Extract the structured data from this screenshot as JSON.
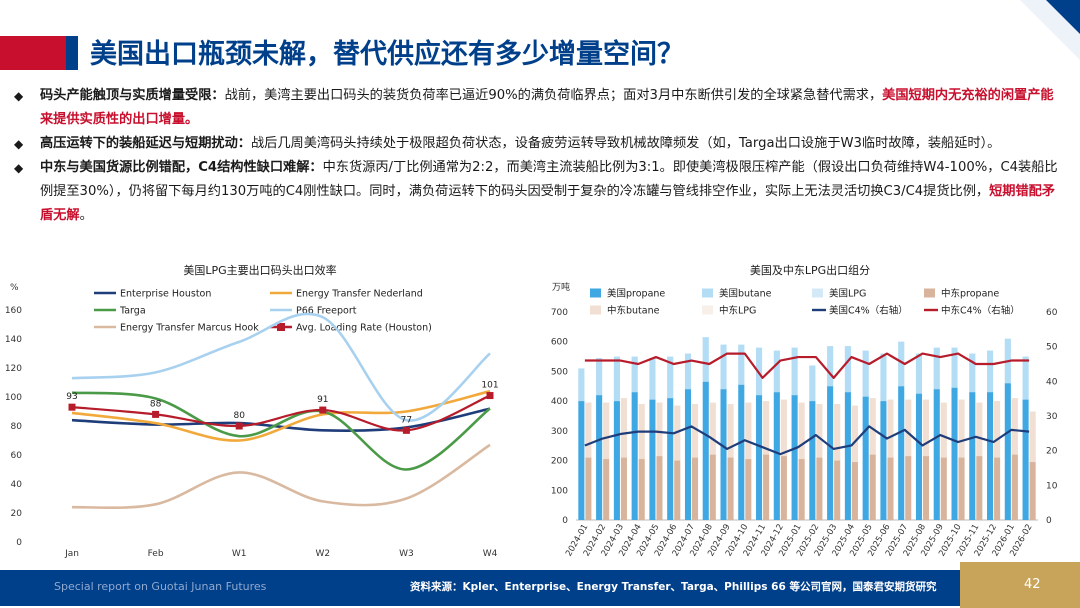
{
  "header": {
    "title": "美国出口瓶颈未解，替代供应还有多少增量空间？"
  },
  "bullets": [
    {
      "bold": "码头产能触顶与实质增量受限：",
      "text": "战前，美湾主要出口码头的装货负荷率已逼近90%的满负荷临界点；面对3月中东断供引发的全球紧急替代需求，",
      "red": "美国短期内无充裕的闲置产能来提供实质性的出口增量。",
      "tail": ""
    },
    {
      "bold": "高压运转下的装船延迟与短期扰动：",
      "text": "战后几周美湾码头持续处于极限超负荷状态，设备疲劳运转导致机械故障频发（如，Targa出口设施于W3临时故障，装船延时）。",
      "red": "",
      "tail": ""
    },
    {
      "bold": "中东与美国货源比例错配，C4结构性缺口难解：",
      "text": "中东货源丙/丁比例通常为2:2，而美湾主流装船比例为3:1。即使美湾极限压榨产能（假设出口负荷维持W4-100%，C4装船比例提至30%），仍将留下每月约130万吨的C4刚性缺口。同时，满负荷运转下的码头因受制于复杂的冷冻罐与管线排空作业，实际上无法灵活切换C3/C4提货比例，",
      "red": "短期错配矛盾无解",
      "tail": "。"
    }
  ],
  "footer": {
    "en": "Special report on Guotai Junan Futures",
    "source": "资料来源：Kpler、Enterprise、Energy Transfer、Targa、Phillips 66 等公司官网，国泰君安期货研究",
    "page": "42"
  },
  "chart_data": [
    {
      "type": "line",
      "title": "美国LPG主要出口码头出口效率",
      "ylabel": "%",
      "ylim": [
        0,
        160
      ],
      "yticks": [
        0,
        20,
        40,
        60,
        80,
        100,
        120,
        140,
        160
      ],
      "categories": [
        "Jan",
        "Feb",
        "W1",
        "W2",
        "W3",
        "W4"
      ],
      "series": [
        {
          "name": "Enterprise Houston",
          "color": "#1f3d7a",
          "values": [
            84,
            81,
            82,
            77,
            79,
            92
          ]
        },
        {
          "name": "Energy Transfer Nederland",
          "color": "#f2a93b",
          "values": [
            89,
            82,
            70,
            88,
            90,
            104
          ]
        },
        {
          "name": "Targa",
          "color": "#4a9a47",
          "values": [
            103,
            99,
            73,
            90,
            50,
            92
          ]
        },
        {
          "name": "P66 Freeport",
          "color": "#a8d1f0",
          "values": [
            113,
            117,
            138,
            155,
            84,
            130
          ]
        },
        {
          "name": "Energy Transfer Marcus Hook",
          "color": "#d9b9a0",
          "values": [
            24,
            26,
            48,
            28,
            30,
            67
          ]
        },
        {
          "name": "Avg. Loading Rate (Houston)",
          "color": "#b71c2b",
          "values": [
            93,
            88,
            80,
            91,
            77,
            101
          ],
          "labels": [
            "93",
            "88",
            "80",
            "91",
            "77",
            "101"
          ]
        }
      ]
    },
    {
      "type": "bar",
      "title": "美国及中东LPG出口组分",
      "ylabel": "万吨",
      "ylim": [
        0,
        700
      ],
      "yticks": [
        0,
        100,
        200,
        300,
        400,
        500,
        600,
        700
      ],
      "y2lim": [
        0,
        60
      ],
      "y2ticks": [
        0,
        10,
        20,
        30,
        40,
        50,
        60
      ],
      "categories": [
        "2024-01",
        "2024-02",
        "2024-03",
        "2024-04",
        "2024-05",
        "2024-06",
        "2024-07",
        "2024-08",
        "2024-09",
        "2024-10",
        "2024-11",
        "2024-12",
        "2025-01",
        "2025-02",
        "2025-03",
        "2025-04",
        "2025-05",
        "2025-06",
        "2025-07",
        "2025-08",
        "2025-09",
        "2025-10",
        "2025-11",
        "2025-12",
        "2026-01",
        "2026-02"
      ],
      "legend": [
        "美国propane",
        "美国butane",
        "美国LPG",
        "中东propane",
        "中东butane",
        "中东LPG",
        "美国C4%（右轴）",
        "中东C4%（右轴）"
      ],
      "series": [
        {
          "name": "美国propane",
          "color": "#3fa7e1",
          "values": [
            400,
            420,
            400,
            430,
            405,
            410,
            440,
            465,
            440,
            455,
            420,
            430,
            420,
            400,
            450,
            430,
            415,
            400,
            450,
            425,
            440,
            445,
            430,
            430,
            460,
            405
          ]
        },
        {
          "name": "美国butane",
          "color": "#b3dcf5",
          "values": [
            110,
            125,
            150,
            120,
            140,
            140,
            120,
            150,
            150,
            135,
            160,
            140,
            160,
            120,
            135,
            155,
            155,
            160,
            150,
            135,
            140,
            135,
            130,
            140,
            150,
            145
          ]
        },
        {
          "name": "美国LPG",
          "color": "#d3e9f8",
          "values": [
            510,
            545,
            550,
            550,
            545,
            550,
            560,
            615,
            590,
            590,
            580,
            570,
            580,
            520,
            585,
            585,
            570,
            560,
            600,
            560,
            580,
            580,
            560,
            570,
            610,
            550
          ]
        },
        {
          "name": "中东propane",
          "color": "#d8b49c",
          "values": [
            210,
            205,
            210,
            205,
            215,
            200,
            210,
            220,
            210,
            205,
            220,
            215,
            205,
            210,
            200,
            195,
            220,
            210,
            215,
            215,
            210,
            210,
            215,
            210,
            220,
            195
          ]
        },
        {
          "name": "中东butane",
          "color": "#f0dfd2",
          "values": [
            185,
            190,
            200,
            185,
            180,
            185,
            180,
            175,
            180,
            190,
            180,
            190,
            190,
            180,
            190,
            190,
            190,
            195,
            190,
            190,
            185,
            195,
            180,
            190,
            190,
            170
          ]
        },
        {
          "name": "中东LPG",
          "color": "#f7efe8",
          "values": [
            395,
            395,
            410,
            390,
            395,
            385,
            390,
            395,
            390,
            395,
            400,
            405,
            395,
            390,
            390,
            385,
            410,
            405,
            405,
            405,
            395,
            405,
            395,
            400,
            410,
            365
          ]
        },
        {
          "name": "美国C4%（右轴）",
          "color": "#1f3d7a",
          "axis": "right",
          "values": [
            21.5,
            23.5,
            24.8,
            25.5,
            25.5,
            25,
            27,
            24,
            20.5,
            23,
            21,
            19,
            21,
            24.5,
            20.5,
            21.5,
            27,
            23.5,
            26,
            21.5,
            24.5,
            22.5,
            24,
            22.5,
            26,
            25.5
          ]
        },
        {
          "name": "中东C4%（右轴）",
          "color": "#b71c2b",
          "axis": "right",
          "values": [
            46,
            46,
            46,
            45,
            47,
            45,
            46,
            45,
            48,
            48,
            41,
            46,
            47,
            47,
            41,
            47,
            45,
            48,
            45,
            48,
            47,
            48,
            45,
            45,
            46,
            46
          ]
        }
      ]
    }
  ]
}
